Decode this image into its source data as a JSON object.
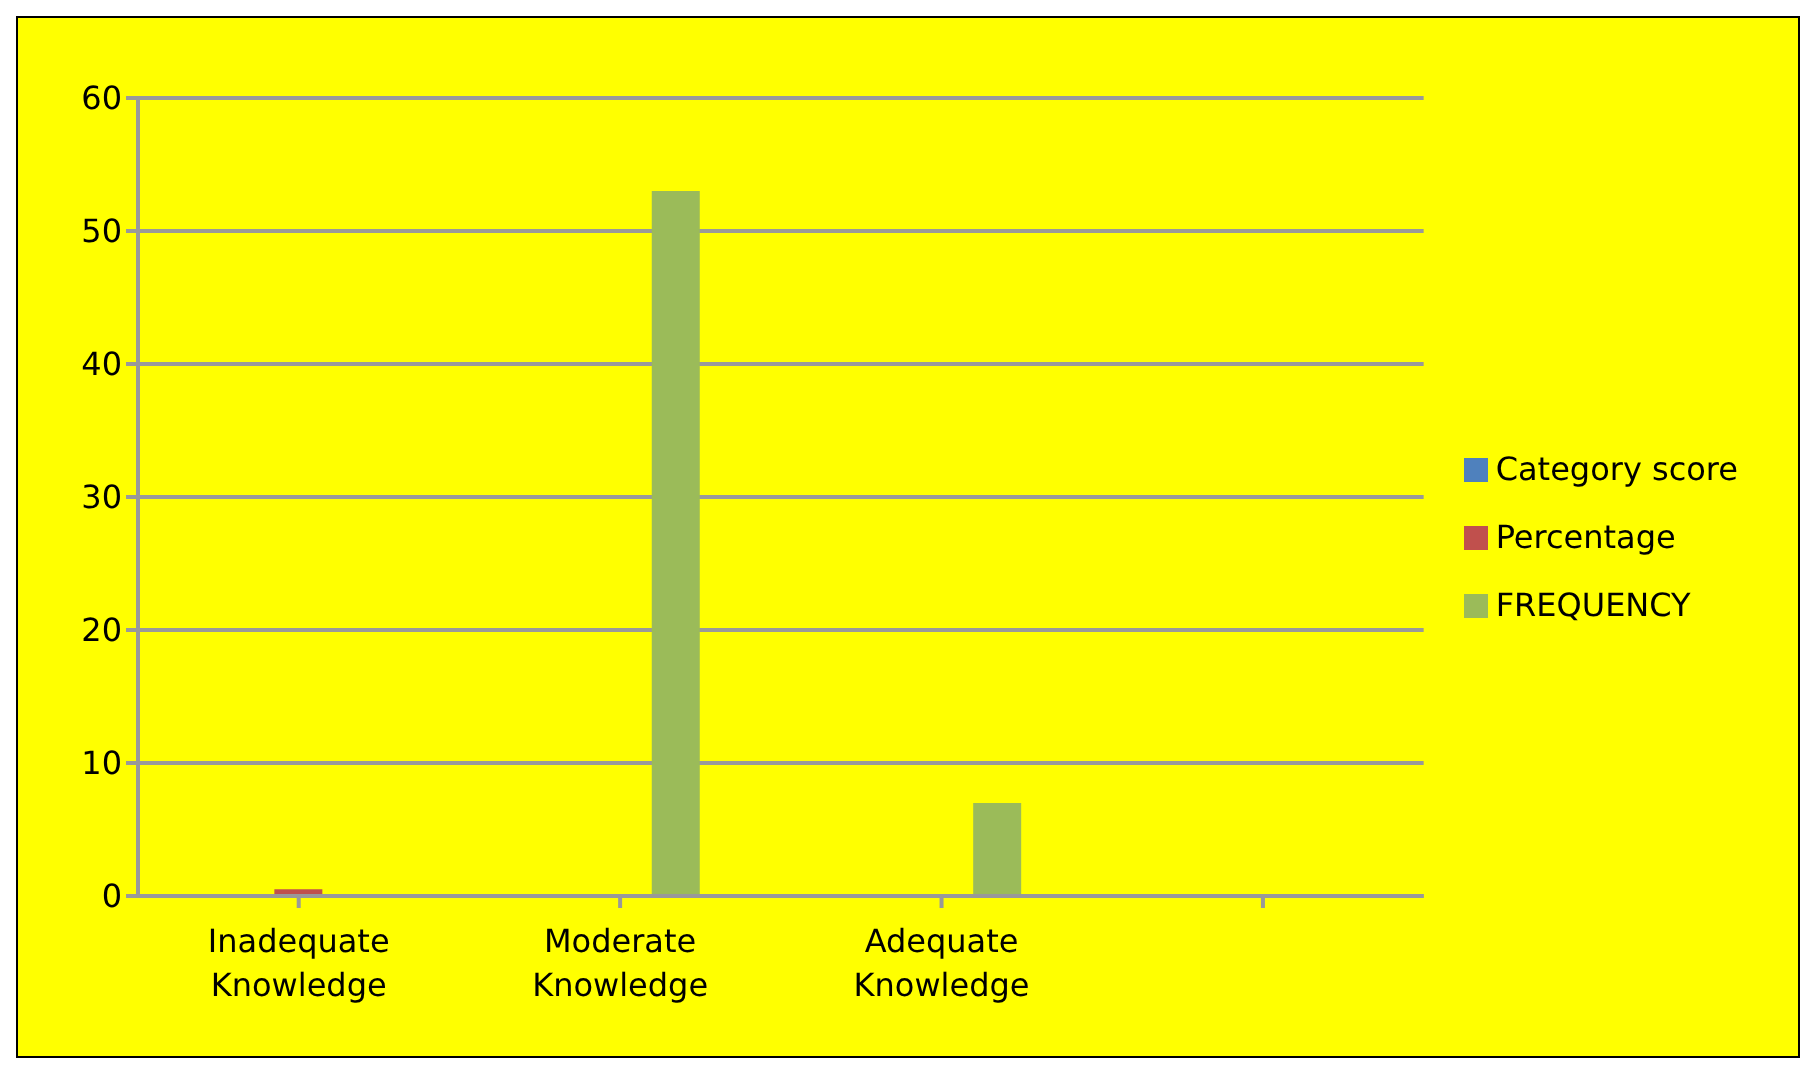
{
  "chart_data": {
    "type": "bar",
    "categories": [
      "Inadequate Knowledge",
      "Moderate Knowledge",
      "Adequate Knowledge",
      null
    ],
    "series": [
      {
        "name": "Category score",
        "color": "#4f81bd",
        "values": [
          null,
          null,
          null,
          null
        ]
      },
      {
        "name": "Percentage",
        "color": "#c0504d",
        "values": [
          0.5,
          0,
          0,
          null
        ]
      },
      {
        "name": "FREQUENCY",
        "color": "#9bbb59",
        "values": [
          0,
          53,
          7,
          null
        ]
      }
    ],
    "ylim": [
      0,
      60
    ],
    "yticks": [
      0,
      10,
      20,
      30,
      40,
      50,
      60
    ],
    "grid": "y",
    "legend": "right"
  }
}
